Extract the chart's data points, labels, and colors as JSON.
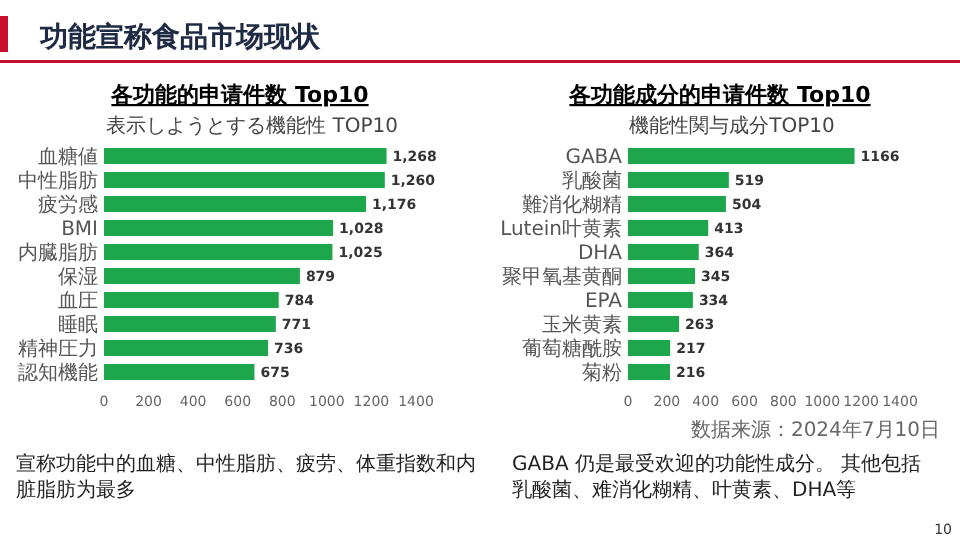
{
  "chart_data": [
    {
      "type": "bar",
      "orientation": "horizontal",
      "title": "各功能的申请件数 Top10",
      "subtitle": "表示しようとする機能性 TOP10",
      "categories": [
        "血糖値",
        "中性脂肪",
        "疲労感",
        "BMI",
        "内臓脂肪",
        "保湿",
        "血圧",
        "睡眠",
        "精神圧力",
        "認知機能"
      ],
      "values": [
        1268,
        1260,
        1176,
        1028,
        1025,
        879,
        784,
        771,
        736,
        675
      ],
      "value_labels": [
        "1,268",
        "1,260",
        "1,176",
        "1,028",
        "1,025",
        "879",
        "784",
        "771",
        "736",
        "675"
      ],
      "color": "#1ea64b",
      "xlim": [
        0,
        1400
      ],
      "xticks": [
        0,
        200,
        400,
        600,
        800,
        1000,
        1200,
        1400
      ],
      "annotations": [
        "功能宣称食品市场现状",
        "宣称功能中的血糖、中性脂肪、疲劳、体重指数和内脏脂肪为最多",
        "10"
      ]
    },
    {
      "type": "bar",
      "orientation": "horizontal",
      "title": "各功能成分的申请件数 Top10",
      "subtitle": "機能性関与成分TOP10",
      "categories": [
        "GABA",
        "乳酸菌",
        "難消化糊精",
        "Lutein叶黄素",
        "DHA",
        "聚甲氧基黄酮",
        "EPA",
        "玉米黄素",
        "葡萄糖酰胺",
        "菊粉"
      ],
      "values": [
        1166,
        519,
        504,
        413,
        364,
        345,
        334,
        263,
        217,
        216
      ],
      "data_labels": true,
      "color": "#1ea64b",
      "xlim": [
        0,
        1400
      ],
      "xticks": [
        0,
        200,
        400,
        600,
        800,
        1000,
        1200,
        1400
      ],
      "annotations": [
        "数据来源：2024年7月10日",
        "GABA 仍是最受欢迎的功能性成分。 其他包括乳酸菌、难消化糊精、叶黄素、DHA等"
      ]
    }
  ]
}
